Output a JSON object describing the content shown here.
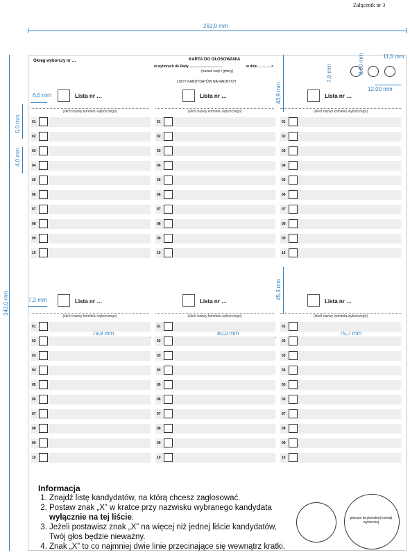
{
  "header": {
    "attachment_label": "Załącznik nr 3"
  },
  "dimensions": {
    "total_width": "261,0 mm",
    "total_height": "343,0 mm",
    "top_gap": "6,0 mm",
    "row_gap": "4,0 mm",
    "left_offset_top": "6,0 mm",
    "left_offset_bottom": "7,2 mm",
    "header_height_top": "43,9 mm",
    "header_height_bottom": "45,3 mm",
    "hole_height": "7,0 mm",
    "hole_diameter": "8,00 mm",
    "hole_right": "11,5 mm",
    "hole_spacing": "12,00 mm",
    "col1_width": "79,8 mm",
    "col2_width": "80,0 mm",
    "col3_width": "75,7 mm"
  },
  "ballot": {
    "district": "Okręg wyborczy nr …",
    "title": "KARTA DO GŁOSOWANIA",
    "election_line_a": "w wyborach do Rady ..................................",
    "election_line_b": "w dniu … … … r.",
    "council_note": "(nazwa rady i gminy)",
    "subtitle": "LISTY KANDYDATÓW NA RADNYCH",
    "list_label": "Lista nr …",
    "committee_note": "(skrót nazwy komitetu wyborczego)",
    "rows": [
      "01",
      "02",
      "03",
      "04",
      "05",
      "06",
      "07",
      "08",
      "09",
      "10"
    ]
  },
  "info": {
    "heading": "Informacja",
    "items": [
      "Znajdź listę kandydatów, na którą chcesz zagłosować.",
      "Postaw znak „X” w kratce przy nazwisku wybranego kandydata",
      "wyłącznie na tej liście",
      "Jeżeli postawisz znak „X” na więcej niż jednej liście kandydatów,",
      "Twój głos będzie nieważny.",
      "Znak „X” to co najmniej dwie linie przecinające się wewnątrz kratki."
    ]
  },
  "seal": {
    "label": "pieczęć terytorialnej komisji wyborczej"
  }
}
